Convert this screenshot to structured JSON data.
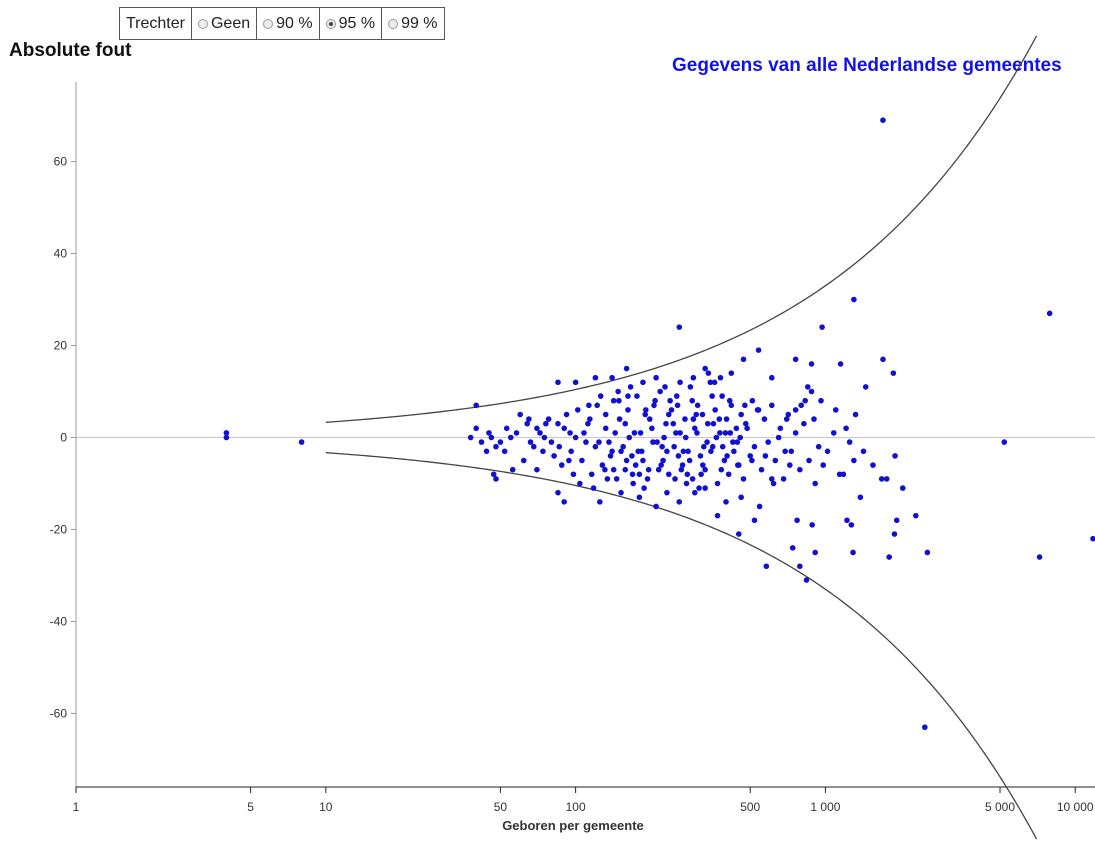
{
  "funnel_selector": {
    "label": "Trechter",
    "options": [
      {
        "label": "Geen",
        "checked": false
      },
      {
        "label": "90 %",
        "checked": false
      },
      {
        "label": "95 %",
        "checked": true
      },
      {
        "label": "99 %",
        "checked": false
      }
    ]
  },
  "colors": {
    "points": "#1010d0",
    "title": "#1212e6",
    "funnel": "#444444",
    "zero_line": "#cccccc"
  },
  "chart_data": {
    "type": "scatter",
    "title": "Gegevens van alle Nederlandse gemeentes",
    "ylabel": "Absolute fout",
    "xlabel": "Geboren per gemeente",
    "x_scale": "log",
    "xlim": [
      1,
      12000
    ],
    "ylim": [
      -76,
      76
    ],
    "x_ticks": [
      {
        "value": 1,
        "label": "1"
      },
      {
        "value": 5,
        "label": "5"
      },
      {
        "value": 10,
        "label": "10"
      },
      {
        "value": 50,
        "label": "50"
      },
      {
        "value": 100,
        "label": "100"
      },
      {
        "value": 500,
        "label": "500"
      },
      {
        "value": 1000,
        "label": "1 000"
      },
      {
        "value": 5000,
        "label": "5 000"
      },
      {
        "value": 10000,
        "label": "10 000"
      }
    ],
    "y_ticks": [
      {
        "value": 60,
        "label": "60"
      },
      {
        "value": 40,
        "label": "40"
      },
      {
        "value": 20,
        "label": "20"
      },
      {
        "value": 0,
        "label": "0"
      },
      {
        "value": -20,
        "label": "-20"
      },
      {
        "value": -40,
        "label": "-40"
      },
      {
        "value": -60,
        "label": "-60"
      }
    ],
    "funnel": {
      "level": "95 %",
      "x_range": [
        10,
        7000
      ],
      "upper_y_at_10": 3.3
    },
    "points": [
      [
        4,
        1
      ],
      [
        4,
        0
      ],
      [
        8,
        -1
      ],
      [
        5200,
        -1
      ],
      [
        7900,
        27
      ],
      [
        7200,
        -26
      ],
      [
        12000,
        -22
      ],
      [
        1700,
        69
      ],
      [
        1300,
        30
      ],
      [
        2500,
        -63
      ],
      [
        970,
        24
      ],
      [
        1700,
        17
      ],
      [
        1870,
        14
      ],
      [
        1450,
        11
      ],
      [
        1150,
        16
      ],
      [
        1220,
        -18
      ],
      [
        1270,
        -19
      ],
      [
        1290,
        -25
      ],
      [
        1900,
        -4
      ],
      [
        1680,
        -9
      ],
      [
        1760,
        -9
      ],
      [
        2040,
        -11
      ],
      [
        1930,
        -18
      ],
      [
        1890,
        -21
      ],
      [
        1800,
        -26
      ],
      [
        2560,
        -25
      ],
      [
        2300,
        -17
      ],
      [
        1380,
        -13
      ],
      [
        1180,
        -8
      ],
      [
        910,
        -10
      ],
      [
        885,
        -19
      ],
      [
        910,
        -25
      ],
      [
        840,
        -31
      ],
      [
        790,
        -28
      ],
      [
        580,
        -28
      ],
      [
        450,
        -21
      ],
      [
        520,
        -18
      ],
      [
        545,
        -15
      ],
      [
        620,
        -10
      ],
      [
        740,
        -24
      ],
      [
        770,
        -18
      ],
      [
        720,
        -6
      ],
      [
        690,
        -3
      ],
      [
        650,
        0
      ],
      [
        700,
        4
      ],
      [
        760,
        6
      ],
      [
        800,
        7
      ],
      [
        830,
        8
      ],
      [
        880,
        10
      ],
      [
        610,
        13
      ],
      [
        760,
        17
      ],
      [
        880,
        16
      ],
      [
        540,
        19
      ],
      [
        470,
        17
      ],
      [
        420,
        14
      ],
      [
        360,
        12
      ],
      [
        330,
        15
      ],
      [
        260,
        24
      ],
      [
        210,
        13
      ],
      [
        160,
        15
      ],
      [
        140,
        13
      ],
      [
        120,
        13
      ],
      [
        100,
        12
      ],
      [
        85,
        12
      ],
      [
        40,
        7
      ],
      [
        38,
        0
      ],
      [
        40,
        2
      ],
      [
        47,
        -8
      ],
      [
        48,
        -9
      ],
      [
        56,
        -7
      ],
      [
        70,
        -7
      ],
      [
        85,
        -12
      ],
      [
        90,
        -14
      ],
      [
        125,
        -14
      ],
      [
        180,
        -13
      ],
      [
        210,
        -15
      ],
      [
        260,
        -14
      ],
      [
        300,
        -12
      ],
      [
        330,
        -11
      ],
      [
        400,
        -14
      ],
      [
        460,
        -13
      ],
      [
        370,
        -17
      ],
      [
        250,
        -9
      ],
      [
        220,
        -6
      ],
      [
        180,
        -8
      ],
      [
        160,
        -5
      ],
      [
        140,
        -3
      ],
      [
        120,
        -2
      ],
      [
        110,
        -1
      ],
      [
        100,
        0
      ],
      [
        95,
        1
      ],
      [
        90,
        2
      ],
      [
        85,
        3
      ],
      [
        80,
        -1
      ],
      [
        75,
        0
      ],
      [
        70,
        2
      ],
      [
        65,
        4
      ],
      [
        60,
        5
      ],
      [
        55,
        0
      ],
      [
        52,
        -3
      ],
      [
        48,
        -2
      ],
      [
        45,
        1
      ],
      [
        44,
        -3
      ],
      [
        42,
        -1
      ],
      [
        62,
        -5
      ],
      [
        68,
        -2
      ],
      [
        72,
        1
      ],
      [
        78,
        4
      ],
      [
        82,
        -4
      ],
      [
        88,
        -6
      ],
      [
        92,
        5
      ],
      [
        96,
        -3
      ],
      [
        102,
        6
      ],
      [
        106,
        -5
      ],
      [
        112,
        3
      ],
      [
        116,
        -8
      ],
      [
        122,
        7
      ],
      [
        128,
        -6
      ],
      [
        132,
        2
      ],
      [
        136,
        -1
      ],
      [
        142,
        8
      ],
      [
        146,
        -9
      ],
      [
        150,
        4
      ],
      [
        155,
        -2
      ],
      [
        162,
        6
      ],
      [
        168,
        -4
      ],
      [
        172,
        1
      ],
      [
        176,
        9
      ],
      [
        184,
        -3
      ],
      [
        190,
        5
      ],
      [
        196,
        -7
      ],
      [
        202,
        2
      ],
      [
        206,
        7
      ],
      [
        212,
        -1
      ],
      [
        218,
        10
      ],
      [
        224,
        -5
      ],
      [
        230,
        3
      ],
      [
        236,
        -8
      ],
      [
        242,
        6
      ],
      [
        248,
        -2
      ],
      [
        254,
        9
      ],
      [
        262,
        1
      ],
      [
        268,
        -6
      ],
      [
        274,
        4
      ],
      [
        282,
        -3
      ],
      [
        288,
        11
      ],
      [
        294,
        -9
      ],
      [
        300,
        2
      ],
      [
        308,
        7
      ],
      [
        316,
        -4
      ],
      [
        322,
        5
      ],
      [
        330,
        -7
      ],
      [
        338,
        3
      ],
      [
        346,
        12
      ],
      [
        354,
        -2
      ],
      [
        362,
        6
      ],
      [
        370,
        -10
      ],
      [
        378,
        1
      ],
      [
        386,
        9
      ],
      [
        394,
        -5
      ],
      [
        402,
        4
      ],
      [
        410,
        -8
      ],
      [
        420,
        7
      ],
      [
        430,
        -3
      ],
      [
        440,
        2
      ],
      [
        450,
        -6
      ],
      [
        460,
        5
      ],
      [
        470,
        -9
      ],
      [
        480,
        3
      ],
      [
        500,
        -4
      ],
      [
        510,
        8
      ],
      [
        520,
        -2
      ],
      [
        535,
        6
      ],
      [
        555,
        -7
      ],
      [
        570,
        4
      ],
      [
        590,
        -1
      ],
      [
        610,
        7
      ],
      [
        630,
        -5
      ],
      [
        660,
        2
      ],
      [
        680,
        -9
      ],
      [
        710,
        5
      ],
      [
        730,
        -3
      ],
      [
        760,
        1
      ],
      [
        790,
        -7
      ],
      [
        820,
        3
      ],
      [
        860,
        -5
      ],
      [
        900,
        4
      ],
      [
        940,
        -2
      ],
      [
        980,
        -6
      ],
      [
        1020,
        -3
      ],
      [
        1080,
        1
      ],
      [
        1140,
        -8
      ],
      [
        1210,
        2
      ],
      [
        1300,
        -5
      ],
      [
        1420,
        -3
      ],
      [
        1550,
        -6
      ],
      [
        1320,
        5
      ],
      [
        1250,
        -1
      ],
      [
        1100,
        6
      ],
      [
        960,
        8
      ],
      [
        850,
        11
      ],
      [
        104,
        -10
      ],
      [
        118,
        -11
      ],
      [
        134,
        -9
      ],
      [
        152,
        -12
      ],
      [
        170,
        -10
      ],
      [
        188,
        -11
      ],
      [
        232,
        -12
      ],
      [
        278,
        -10
      ],
      [
        312,
        -11
      ],
      [
        126,
        9
      ],
      [
        148,
        10
      ],
      [
        166,
        11
      ],
      [
        186,
        12
      ],
      [
        228,
        11
      ],
      [
        262,
        12
      ],
      [
        296,
        13
      ],
      [
        340,
        14
      ],
      [
        380,
        13
      ],
      [
        114,
        4
      ],
      [
        138,
        -4
      ],
      [
        158,
        3
      ],
      [
        178,
        -3
      ],
      [
        198,
        4
      ],
      [
        222,
        -2
      ],
      [
        246,
        3
      ],
      [
        270,
        -3
      ],
      [
        296,
        4
      ],
      [
        326,
        -2
      ],
      [
        356,
        3
      ],
      [
        388,
        -2
      ],
      [
        416,
        1
      ],
      [
        444,
        -1
      ],
      [
        108,
        1
      ],
      [
        124,
        -1
      ],
      [
        144,
        1
      ],
      [
        164,
        0
      ],
      [
        182,
        1
      ],
      [
        204,
        -1
      ],
      [
        226,
        0
      ],
      [
        252,
        1
      ],
      [
        276,
        0
      ],
      [
        306,
        1
      ],
      [
        336,
        -1
      ],
      [
        366,
        0
      ],
      [
        398,
        1
      ],
      [
        426,
        -1
      ],
      [
        456,
        0
      ],
      [
        486,
        2
      ],
      [
        98,
        -8
      ],
      [
        113,
        7
      ],
      [
        131,
        -7
      ],
      [
        149,
        8
      ],
      [
        169,
        -8
      ],
      [
        191,
        6
      ],
      [
        215,
        -7
      ],
      [
        239,
        8
      ],
      [
        265,
        -7
      ],
      [
        293,
        8
      ],
      [
        323,
        -6
      ],
      [
        352,
        9
      ],
      [
        383,
        -7
      ],
      [
        414,
        8
      ],
      [
        446,
        -6
      ],
      [
        476,
        7
      ],
      [
        508,
        -5
      ],
      [
        540,
        6
      ],
      [
        575,
        -4
      ],
      [
        610,
        -9
      ],
      [
        74,
        -3
      ],
      [
        76,
        3
      ],
      [
        66,
        -1
      ],
      [
        58,
        1
      ],
      [
        53,
        2
      ],
      [
        50,
        -1
      ],
      [
        46,
        0
      ],
      [
        64,
        3
      ],
      [
        86,
        -2
      ],
      [
        94,
        -5
      ],
      [
        158,
        -7
      ],
      [
        174,
        -6
      ],
      [
        194,
        -9
      ],
      [
        236,
        5
      ],
      [
        258,
        -4
      ],
      [
        286,
        -5
      ],
      [
        318,
        -8
      ],
      [
        348,
        -3
      ],
      [
        376,
        4
      ],
      [
        404,
        -4
      ],
      [
        132,
        5
      ],
      [
        142,
        -7
      ],
      [
        152,
        -3
      ],
      [
        162,
        9
      ],
      [
        186,
        -5
      ],
      [
        208,
        8
      ],
      [
        232,
        -3
      ],
      [
        256,
        7
      ],
      [
        280,
        -8
      ],
      [
        304,
        5
      ]
    ]
  }
}
